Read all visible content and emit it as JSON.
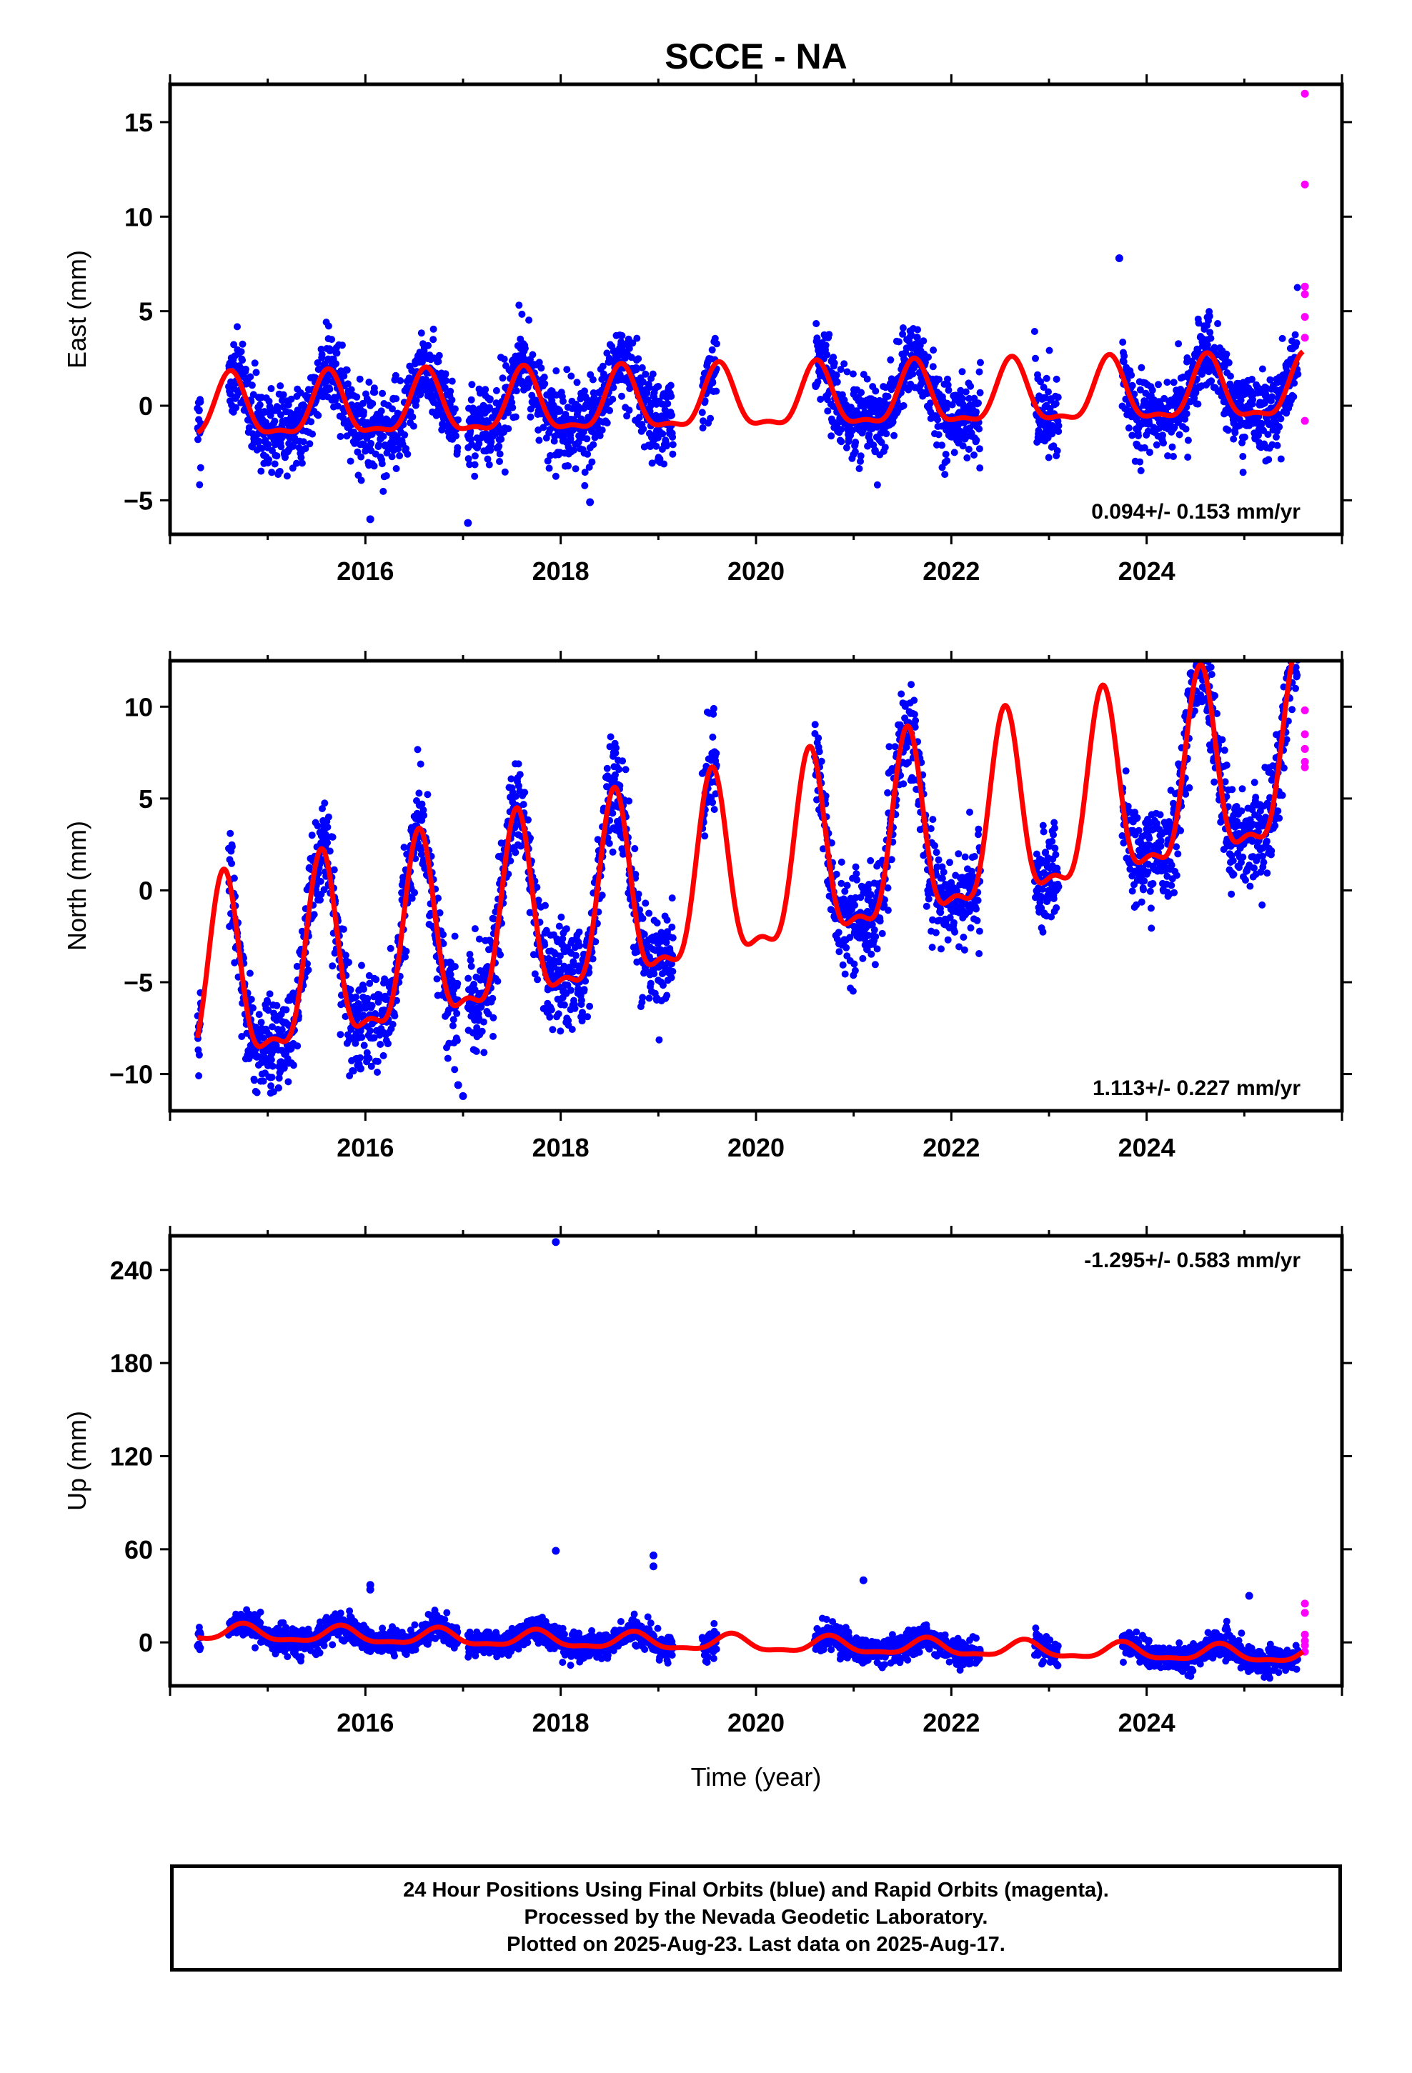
{
  "chart_data": {
    "title": "SCCE - NA",
    "type": "scatter",
    "xlabel": "Time (year)",
    "xlim": [
      2014.0,
      2026.0
    ],
    "xticks": [
      2016,
      2018,
      2020,
      2022,
      2024
    ],
    "colors": {
      "final": "#0000ff",
      "rapid": "#ff00ff",
      "fit": "#ff0000"
    },
    "series_description": [
      "24 Hour Positions Using Final Orbits (blue)",
      "Rapid Orbits (magenta)"
    ],
    "panels": [
      {
        "ylabel": "East (mm)",
        "ylim": [
          -6.8,
          17
        ],
        "yticks": [
          -5,
          0,
          5,
          10,
          15
        ],
        "ytick_labels": [
          "−5",
          "0",
          "5",
          "10",
          "15"
        ],
        "rate_text": "0.094+/- 0.153 mm/yr",
        "rate_position": "bottom-right",
        "fit": {
          "offset": 0.2,
          "trend": 0.094,
          "annual_amp": 1.6,
          "annual_phase_year": 2014.62,
          "ref_year": 2019.9
        },
        "scatter": {
          "noise": 1.0,
          "annual_amp": 2.0
        },
        "outliers": [
          {
            "x": 2016.05,
            "y": -6.0
          },
          {
            "x": 2017.05,
            "y": -6.2
          },
          {
            "x": 2023.72,
            "y": 7.8
          },
          {
            "x": 2018.3,
            "y": -5.1
          }
        ],
        "rapid": [
          {
            "x": 2025.62,
            "y": 16.5
          },
          {
            "x": 2025.62,
            "y": 11.7
          },
          {
            "x": 2025.62,
            "y": 6.3
          },
          {
            "x": 2025.62,
            "y": 5.9
          },
          {
            "x": 2025.62,
            "y": 4.7
          },
          {
            "x": 2025.62,
            "y": 3.6
          },
          {
            "x": 2025.62,
            "y": -0.8
          }
        ]
      },
      {
        "ylabel": "North (mm)",
        "ylim": [
          -12,
          12.5
        ],
        "yticks": [
          -10,
          -5,
          0,
          5,
          10
        ],
        "ytick_labels": [
          "−10",
          "−5",
          "0",
          "5",
          "10"
        ],
        "rate_text": "1.113+/- 0.227 mm/yr",
        "rate_position": "bottom-right",
        "fit": {
          "offset": 0.5,
          "trend": 1.113,
          "annual_amp": 4.9,
          "annual_phase_year": 2014.55,
          "ref_year": 2019.9
        },
        "scatter": {
          "noise": 1.3,
          "annual_amp": 5.0
        },
        "outliers": [
          {
            "x": 2017.0,
            "y": -11.2
          },
          {
            "x": 2016.95,
            "y": -10.6
          },
          {
            "x": 2015.95,
            "y": -9.7
          },
          {
            "x": 2024.45,
            "y": 11.8
          }
        ],
        "rapid": [
          {
            "x": 2025.62,
            "y": 9.8
          },
          {
            "x": 2025.62,
            "y": 8.5
          },
          {
            "x": 2025.62,
            "y": 7.7
          },
          {
            "x": 2025.62,
            "y": 7.0
          },
          {
            "x": 2025.62,
            "y": 6.7
          }
        ]
      },
      {
        "ylabel": "Up (mm)",
        "ylim": [
          -28,
          262
        ],
        "yticks": [
          0,
          60,
          120,
          180,
          240
        ],
        "ytick_labels": [
          "0",
          "60",
          "120",
          "180",
          "240"
        ],
        "rate_text": "-1.295+/- 0.583 mm/yr",
        "rate_position": "top-right",
        "fit": {
          "offset": -1.0,
          "trend": -1.295,
          "annual_amp": 5.0,
          "annual_phase_year": 2014.75,
          "ref_year": 2019.9
        },
        "scatter": {
          "noise": 4.0,
          "annual_amp": 5.5
        },
        "outliers": [
          {
            "x": 2017.95,
            "y": 258
          },
          {
            "x": 2017.95,
            "y": 59
          },
          {
            "x": 2018.95,
            "y": 56
          },
          {
            "x": 2018.95,
            "y": 49
          },
          {
            "x": 2021.1,
            "y": 40
          },
          {
            "x": 2016.05,
            "y": 37
          },
          {
            "x": 2016.05,
            "y": 34
          },
          {
            "x": 2025.05,
            "y": 30
          }
        ],
        "rapid": [
          {
            "x": 2025.62,
            "y": 25
          },
          {
            "x": 2025.62,
            "y": 19
          },
          {
            "x": 2025.62,
            "y": 5
          },
          {
            "x": 2025.62,
            "y": 1
          },
          {
            "x": 2025.62,
            "y": -2
          },
          {
            "x": 2025.62,
            "y": -6
          }
        ]
      }
    ],
    "data_segments": [
      [
        2014.28,
        2014.32
      ],
      [
        2014.6,
        2016.95
      ],
      [
        2017.05,
        2019.15
      ],
      [
        2019.45,
        2019.6
      ],
      [
        2020.6,
        2022.3
      ],
      [
        2022.85,
        2023.1
      ],
      [
        2023.75,
        2025.55
      ]
    ],
    "fit_range": [
      2014.28,
      2025.6
    ],
    "footer": {
      "line1": "24 Hour Positions Using Final Orbits (blue) and Rapid Orbits (magenta).",
      "line2": "Processed by the Nevada Geodetic Laboratory.",
      "line3": "Plotted on 2025-Aug-23. Last data on 2025-Aug-17."
    }
  }
}
